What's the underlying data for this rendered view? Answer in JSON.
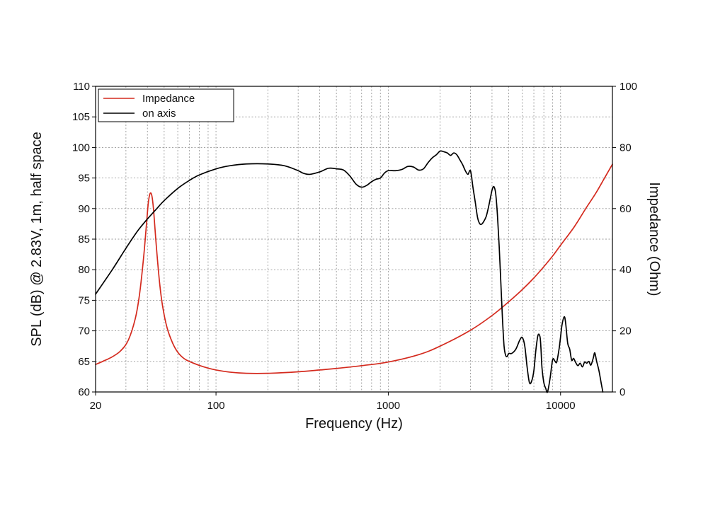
{
  "chart_data": {
    "type": "line",
    "xscale": "log",
    "xlabel": "Frequency (Hz)",
    "ylabel_left": "SPL (dB) @ 2.83V, 1m, half space",
    "ylabel_right": "Impedance (Ohm)",
    "xlim": [
      20,
      20000
    ],
    "ylim_left": [
      60,
      110
    ],
    "ylim_right": [
      0,
      100
    ],
    "x_ticks": [
      20,
      100,
      1000,
      10000
    ],
    "x_tick_labels": [
      "20",
      "100",
      "1000",
      "10000"
    ],
    "y_left_ticks": [
      60,
      65,
      70,
      75,
      80,
      85,
      90,
      95,
      100,
      105,
      110
    ],
    "y_left_tick_labels": [
      "60",
      "65",
      "70",
      "75",
      "80",
      "85",
      "90",
      "95",
      "100",
      "105",
      "110"
    ],
    "y_right_ticks": [
      0,
      20,
      40,
      60,
      80,
      100
    ],
    "y_right_tick_labels": [
      "0",
      "20",
      "40",
      "60",
      "80",
      "100"
    ],
    "grid": true,
    "legend_position": "top-left",
    "series": [
      {
        "name": "Impedance",
        "axis": "right",
        "color": "#d42a1e",
        "points": [
          [
            20,
            9
          ],
          [
            22,
            10
          ],
          [
            25,
            11.5
          ],
          [
            28,
            13.5
          ],
          [
            31,
            17
          ],
          [
            34,
            24
          ],
          [
            36,
            32
          ],
          [
            38,
            44
          ],
          [
            39.5,
            55
          ],
          [
            40.5,
            62
          ],
          [
            41.5,
            65
          ],
          [
            42.5,
            64
          ],
          [
            43.5,
            59
          ],
          [
            45,
            48
          ],
          [
            47,
            36
          ],
          [
            49,
            28
          ],
          [
            52,
            21
          ],
          [
            56,
            16
          ],
          [
            60,
            13
          ],
          [
            65,
            11
          ],
          [
            70,
            10
          ],
          [
            80,
            8.7
          ],
          [
            90,
            7.8
          ],
          [
            100,
            7.2
          ],
          [
            120,
            6.5
          ],
          [
            150,
            6.1
          ],
          [
            200,
            6.1
          ],
          [
            300,
            6.6
          ],
          [
            400,
            7.2
          ],
          [
            500,
            7.7
          ],
          [
            700,
            8.6
          ],
          [
            1000,
            9.8
          ],
          [
            1500,
            12.2
          ],
          [
            2000,
            15
          ],
          [
            3000,
            20.2
          ],
          [
            4000,
            25
          ],
          [
            5000,
            29.5
          ],
          [
            6000,
            33.5
          ],
          [
            7000,
            37.3
          ],
          [
            8000,
            41
          ],
          [
            9000,
            44.5
          ],
          [
            10000,
            48
          ],
          [
            12000,
            54
          ],
          [
            14000,
            60
          ],
          [
            16000,
            65
          ],
          [
            18000,
            70
          ],
          [
            20000,
            74.5
          ]
        ]
      },
      {
        "name": "on axis",
        "axis": "left",
        "color": "#000000",
        "points": [
          [
            20,
            76
          ],
          [
            25,
            80
          ],
          [
            30,
            83.5
          ],
          [
            35,
            86.3
          ],
          [
            40,
            88.3
          ],
          [
            45,
            89.9
          ],
          [
            50,
            91.3
          ],
          [
            60,
            93.3
          ],
          [
            70,
            94.6
          ],
          [
            80,
            95.5
          ],
          [
            100,
            96.5
          ],
          [
            120,
            97
          ],
          [
            150,
            97.3
          ],
          [
            200,
            97.3
          ],
          [
            250,
            97
          ],
          [
            300,
            96.2
          ],
          [
            320,
            95.8
          ],
          [
            350,
            95.6
          ],
          [
            400,
            96
          ],
          [
            450,
            96.6
          ],
          [
            500,
            96.5
          ],
          [
            550,
            96.3
          ],
          [
            600,
            95.3
          ],
          [
            650,
            94
          ],
          [
            700,
            93.5
          ],
          [
            750,
            93.8
          ],
          [
            800,
            94.4
          ],
          [
            850,
            94.8
          ],
          [
            900,
            95
          ],
          [
            950,
            95.8
          ],
          [
            1000,
            96.2
          ],
          [
            1100,
            96.2
          ],
          [
            1200,
            96.4
          ],
          [
            1300,
            96.9
          ],
          [
            1400,
            96.8
          ],
          [
            1500,
            96.3
          ],
          [
            1600,
            96.5
          ],
          [
            1700,
            97.5
          ],
          [
            1800,
            98.3
          ],
          [
            1900,
            98.8
          ],
          [
            2000,
            99.4
          ],
          [
            2100,
            99.3
          ],
          [
            2200,
            99.1
          ],
          [
            2300,
            98.7
          ],
          [
            2400,
            99.1
          ],
          [
            2500,
            98.8
          ],
          [
            2600,
            98
          ],
          [
            2700,
            97.2
          ],
          [
            2800,
            96.2
          ],
          [
            2900,
            95.6
          ],
          [
            3000,
            96.2
          ],
          [
            3100,
            93.5
          ],
          [
            3200,
            91
          ],
          [
            3300,
            88.5
          ],
          [
            3400,
            87.5
          ],
          [
            3500,
            87.5
          ],
          [
            3600,
            88
          ],
          [
            3700,
            88.7
          ],
          [
            3800,
            90
          ],
          [
            3900,
            91.5
          ],
          [
            4000,
            93
          ],
          [
            4100,
            93.6
          ],
          [
            4200,
            92.5
          ],
          [
            4300,
            89
          ],
          [
            4400,
            84
          ],
          [
            4500,
            78
          ],
          [
            4600,
            72
          ],
          [
            4700,
            67.5
          ],
          [
            4800,
            66
          ],
          [
            4900,
            65.8
          ],
          [
            5000,
            66.3
          ],
          [
            5200,
            66.3
          ],
          [
            5500,
            67
          ],
          [
            5800,
            68.5
          ],
          [
            6000,
            68.9
          ],
          [
            6200,
            67.5
          ],
          [
            6400,
            64
          ],
          [
            6600,
            61.5
          ],
          [
            6800,
            61.8
          ],
          [
            7000,
            63.5
          ],
          [
            7200,
            67
          ],
          [
            7400,
            69.3
          ],
          [
            7600,
            69
          ],
          [
            7700,
            67
          ],
          [
            7800,
            64
          ],
          [
            8000,
            61.5
          ],
          [
            8200,
            60.6
          ],
          [
            8400,
            60
          ],
          [
            8700,
            62.3
          ],
          [
            9000,
            65.3
          ],
          [
            9300,
            65
          ],
          [
            9500,
            64.9
          ],
          [
            9800,
            67
          ],
          [
            10000,
            69
          ],
          [
            10200,
            71
          ],
          [
            10500,
            72.3
          ],
          [
            10700,
            71.3
          ],
          [
            11000,
            68
          ],
          [
            11300,
            67
          ],
          [
            11600,
            65.2
          ],
          [
            11900,
            65.5
          ],
          [
            12200,
            64.9
          ],
          [
            12600,
            64.3
          ],
          [
            13000,
            64.7
          ],
          [
            13400,
            64.1
          ],
          [
            13800,
            64.9
          ],
          [
            14200,
            64.7
          ],
          [
            14600,
            65
          ],
          [
            15000,
            64.4
          ],
          [
            15500,
            65.6
          ],
          [
            15800,
            66.4
          ],
          [
            16200,
            65
          ],
          [
            16700,
            63.5
          ],
          [
            17200,
            61.5
          ],
          [
            17600,
            60
          ]
        ]
      }
    ]
  }
}
